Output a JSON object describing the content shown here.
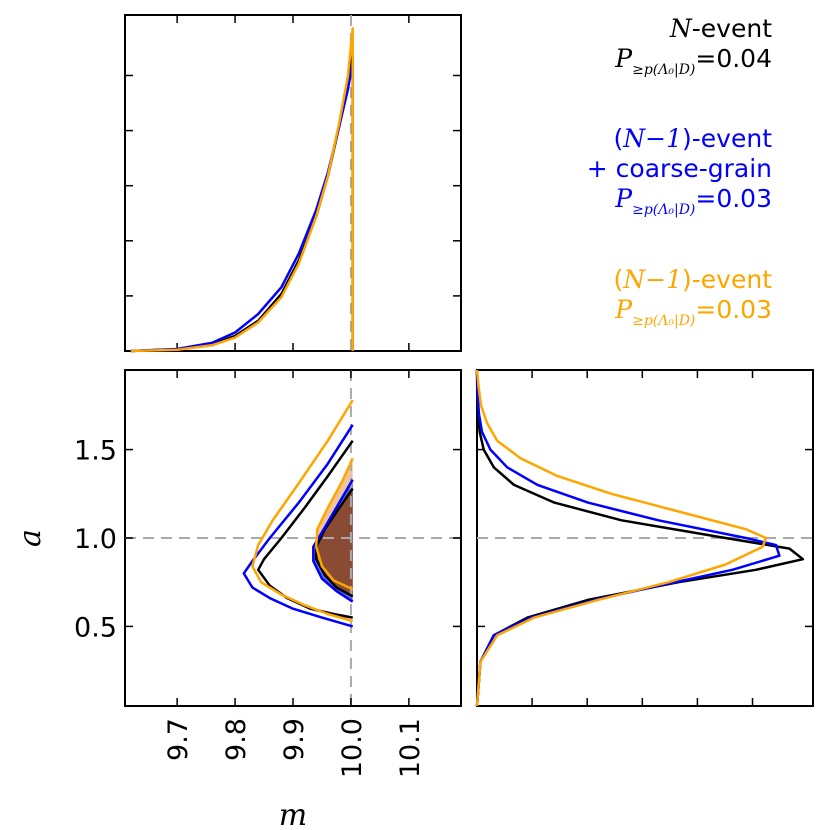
{
  "chart_data": [
    {
      "panel": "marginal-m",
      "type": "line",
      "xlabel": "",
      "ylabel": "",
      "xlim": [
        9.61,
        10.19
      ],
      "reference_line": {
        "x": 10.0
      },
      "series": [
        {
          "name": "N-event",
          "color": "#000000",
          "x": [
            9.62,
            9.7,
            9.76,
            9.8,
            9.84,
            9.88,
            9.91,
            9.94,
            9.96,
            9.98,
            9.995,
            10.003
          ],
          "y": [
            0.0,
            0.005,
            0.02,
            0.045,
            0.09,
            0.17,
            0.27,
            0.4,
            0.52,
            0.67,
            0.79,
            0.88
          ]
        },
        {
          "name": "(N-1)-event + coarse-grain",
          "color": "#0000ff",
          "x": [
            9.62,
            9.7,
            9.76,
            9.8,
            9.84,
            9.88,
            9.91,
            9.94,
            9.96,
            9.98,
            9.995,
            10.003
          ],
          "y": [
            0.0,
            0.006,
            0.024,
            0.055,
            0.11,
            0.19,
            0.29,
            0.42,
            0.53,
            0.67,
            0.78,
            0.86
          ]
        },
        {
          "name": "(N-1)-event",
          "color": "#ffa500",
          "x": [
            9.62,
            9.7,
            9.76,
            9.8,
            9.84,
            9.88,
            9.91,
            9.94,
            9.96,
            9.98,
            9.995,
            10.003
          ],
          "y": [
            0.0,
            0.004,
            0.017,
            0.04,
            0.085,
            0.16,
            0.26,
            0.4,
            0.52,
            0.68,
            0.82,
            0.96
          ]
        }
      ]
    },
    {
      "panel": "joint-m-a",
      "type": "contour",
      "xlabel": "m",
      "ylabel": "a",
      "xlim": [
        9.61,
        10.19
      ],
      "ylim": [
        0.05,
        1.95
      ],
      "xticks": [
        "9.7",
        "9.8",
        "9.9",
        "10.0",
        "10.1"
      ],
      "yticks": [
        "0.5",
        "1.0",
        "1.5"
      ],
      "reference_lines": {
        "x": 10.0,
        "y": 1.0
      },
      "contours": [
        {
          "name": "N-event outer",
          "color": "#000000",
          "points": [
            [
              10.003,
              1.55
            ],
            [
              9.96,
              1.35
            ],
            [
              9.92,
              1.17
            ],
            [
              9.88,
              1.0
            ],
            [
              9.85,
              0.88
            ],
            [
              9.84,
              0.82
            ],
            [
              9.86,
              0.73
            ],
            [
              9.89,
              0.66
            ],
            [
              9.93,
              0.6
            ],
            [
              9.97,
              0.57
            ],
            [
              10.003,
              0.55
            ]
          ]
        },
        {
          "name": "N-event inner",
          "color": "#000000",
          "points": [
            [
              10.003,
              1.28
            ],
            [
              9.98,
              1.17
            ],
            [
              9.955,
              1.05
            ],
            [
              9.94,
              0.95
            ],
            [
              9.94,
              0.88
            ],
            [
              9.955,
              0.79
            ],
            [
              9.975,
              0.72
            ],
            [
              10.003,
              0.67
            ]
          ]
        },
        {
          "name": "(N-1)-event + coarse-grain outer",
          "color": "#0000ff",
          "points": [
            [
              10.003,
              1.64
            ],
            [
              9.96,
              1.42
            ],
            [
              9.91,
              1.2
            ],
            [
              9.86,
              1.0
            ],
            [
              9.83,
              0.87
            ],
            [
              9.815,
              0.8
            ],
            [
              9.83,
              0.72
            ],
            [
              9.86,
              0.66
            ],
            [
              9.9,
              0.6
            ],
            [
              9.95,
              0.55
            ],
            [
              10.003,
              0.5
            ]
          ]
        },
        {
          "name": "(N-1)-event + coarse-grain inner",
          "color": "#0000ff",
          "points": [
            [
              10.003,
              1.33
            ],
            [
              9.98,
              1.2
            ],
            [
              9.955,
              1.06
            ],
            [
              9.935,
              0.95
            ],
            [
              9.935,
              0.87
            ],
            [
              9.95,
              0.77
            ],
            [
              9.975,
              0.7
            ],
            [
              10.003,
              0.64
            ]
          ]
        },
        {
          "name": "(N-1)-event outer",
          "color": "#ffa500",
          "points": [
            [
              10.003,
              1.78
            ],
            [
              9.96,
              1.55
            ],
            [
              9.91,
              1.31
            ],
            [
              9.865,
              1.1
            ],
            [
              9.84,
              0.96
            ],
            [
              9.83,
              0.84
            ],
            [
              9.845,
              0.75
            ],
            [
              9.88,
              0.68
            ],
            [
              9.92,
              0.62
            ],
            [
              9.96,
              0.57
            ],
            [
              10.003,
              0.53
            ]
          ]
        },
        {
          "name": "(N-1)-event inner",
          "color": "#ffa500",
          "points": [
            [
              10.003,
              1.45
            ],
            [
              9.985,
              1.32
            ],
            [
              9.96,
              1.17
            ],
            [
              9.942,
              1.05
            ],
            [
              9.94,
              0.95
            ],
            [
              9.95,
              0.84
            ],
            [
              9.97,
              0.76
            ],
            [
              10.003,
              0.71
            ]
          ]
        }
      ]
    },
    {
      "panel": "marginal-a",
      "type": "line",
      "orientation": "horizontal",
      "ylim": [
        0.05,
        1.95
      ],
      "reference_line": {
        "y": 1.0
      },
      "series": [
        {
          "name": "N-event",
          "color": "#000000",
          "a": [
            0.05,
            0.3,
            0.45,
            0.55,
            0.65,
            0.75,
            0.82,
            0.88,
            0.94,
            1.0,
            1.1,
            1.2,
            1.3,
            1.4,
            1.5,
            1.6,
            1.7,
            1.8,
            1.95
          ],
          "p": [
            0.0,
            0.01,
            0.05,
            0.15,
            0.33,
            0.6,
            0.83,
            0.97,
            0.93,
            0.74,
            0.43,
            0.23,
            0.11,
            0.05,
            0.02,
            0.008,
            0.003,
            0.001,
            0.0
          ]
        },
        {
          "name": "(N-1)-event + coarse-grain",
          "color": "#0000ff",
          "a": [
            0.05,
            0.3,
            0.45,
            0.55,
            0.65,
            0.75,
            0.82,
            0.9,
            0.96,
            1.0,
            1.1,
            1.2,
            1.3,
            1.4,
            1.5,
            1.6,
            1.7,
            1.8,
            1.95
          ],
          "p": [
            0.0,
            0.01,
            0.05,
            0.16,
            0.35,
            0.59,
            0.76,
            0.9,
            0.89,
            0.8,
            0.54,
            0.33,
            0.18,
            0.09,
            0.04,
            0.015,
            0.006,
            0.002,
            0.0
          ]
        },
        {
          "name": "(N-1)-event",
          "color": "#ffa500",
          "a": [
            0.05,
            0.3,
            0.45,
            0.55,
            0.65,
            0.75,
            0.85,
            0.95,
            1.0,
            1.05,
            1.15,
            1.25,
            1.35,
            1.45,
            1.55,
            1.65,
            1.75,
            1.85,
            1.95
          ],
          "p": [
            0.0,
            0.01,
            0.06,
            0.17,
            0.36,
            0.57,
            0.74,
            0.85,
            0.86,
            0.8,
            0.6,
            0.4,
            0.24,
            0.13,
            0.06,
            0.03,
            0.012,
            0.005,
            0.0
          ]
        }
      ]
    }
  ],
  "legend": {
    "black": {
      "title_var": "N",
      "title_rest": "-event",
      "p_label": "P",
      "p_sub": "≥p(Λ₀|D)",
      "p_eq": "=0.04",
      "color": "#000000"
    },
    "blue": {
      "title_pre": "(",
      "title_var": "N−1",
      "title_rest": ")-event",
      "line2": "+ coarse-grain",
      "p_label": "P",
      "p_sub": "≥p(Λ₀|D)",
      "p_eq": "=0.03",
      "color": "#0000ff"
    },
    "orange": {
      "title_pre": "(",
      "title_var": "N−1",
      "title_rest": ")-event",
      "p_label": "P",
      "p_sub": "≥p(Λ₀|D)",
      "p_eq": "=0.03",
      "color": "#ffa500"
    }
  },
  "fill_color": "#8b4a2b"
}
